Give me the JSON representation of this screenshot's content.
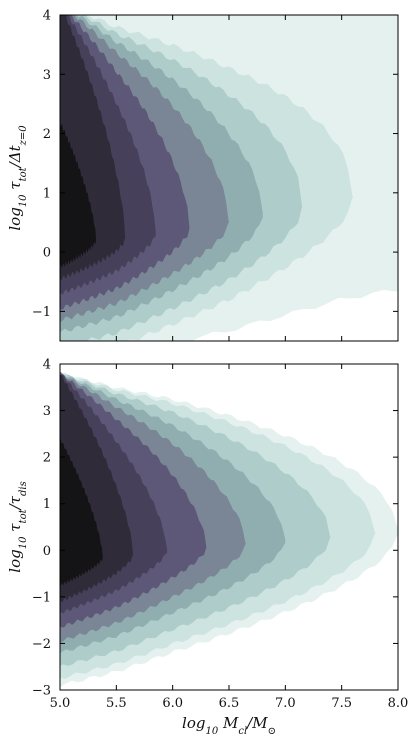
{
  "chart_data": [
    {
      "type": "contour",
      "panel": "top",
      "xlim": [
        5.0,
        8.0
      ],
      "ylim": [
        -1.5,
        4.0
      ],
      "xticks": [
        5.0,
        5.5,
        6.0,
        6.5,
        7.0,
        7.5,
        8.0
      ],
      "xtick_labels": [
        "",
        "",
        "",
        "",
        "",
        "",
        ""
      ],
      "yticks": [
        -1,
        0,
        1,
        2,
        3,
        4
      ],
      "ytick_labels": [
        "−1",
        "0",
        "1",
        "2",
        "3",
        "4"
      ],
      "ylabel": "log₁₀ τ_tot/Δt_z=0",
      "xlabel": "",
      "levels": 9,
      "colors": [
        "#e5f1ef",
        "#cde3e0",
        "#aecdca",
        "#90aeb0",
        "#7a8595",
        "#5d5877",
        "#47405a",
        "#2f2b38",
        "#141316"
      ],
      "contour_shape": {
        "ridge_y": [
          [
            5.0,
            0.2
          ],
          [
            5.5,
            0.2
          ],
          [
            6.0,
            0.35
          ],
          [
            6.5,
            0.5
          ],
          [
            7.0,
            0.7
          ],
          [
            7.5,
            0.9
          ],
          [
            8.0,
            1.0
          ]
        ],
        "extent_x": [
          8.9,
          2.6,
          2.15,
          1.8,
          1.5,
          1.15,
          0.85,
          0.58,
          0.32
        ],
        "half_upper": [
          4.0,
          4.0,
          4.0,
          4.0,
          4.0,
          4.0,
          4.0,
          4.0,
          2.0
        ],
        "half_lower": [
          2.0,
          2.0,
          1.8,
          1.55,
          1.35,
          1.15,
          0.9,
          0.65,
          0.45
        ],
        "taper_power": [
          0.5,
          0.5,
          0.52,
          0.55,
          0.58,
          0.6,
          0.62,
          0.64,
          0.66
        ]
      }
    },
    {
      "type": "contour",
      "panel": "bottom",
      "xlim": [
        5.0,
        8.0
      ],
      "ylim": [
        -3.0,
        4.0
      ],
      "xticks": [
        5.0,
        5.5,
        6.0,
        6.5,
        7.0,
        7.5,
        8.0
      ],
      "xtick_labels": [
        "5.0",
        "5.5",
        "6.0",
        "6.5",
        "7.0",
        "7.5",
        "8.0"
      ],
      "yticks": [
        -3,
        -2,
        -1,
        0,
        1,
        2,
        3,
        4
      ],
      "ytick_labels": [
        "−3",
        "−2",
        "−1",
        "0",
        "1",
        "2",
        "3",
        "4"
      ],
      "ylabel": "log₁₀ τ_tot/τ_dis",
      "xlabel": "log₁₀ M_cl/M_⊙",
      "levels": 9,
      "colors": [
        "#e5f1ef",
        "#cde3e0",
        "#aecdca",
        "#90aeb0",
        "#7a8595",
        "#5d5877",
        "#47405a",
        "#2f2b38",
        "#141316"
      ],
      "contour_shape": {
        "ridge_y": [
          [
            5.0,
            -0.2
          ],
          [
            5.5,
            -0.15
          ],
          [
            6.0,
            0.0
          ],
          [
            6.5,
            0.1
          ],
          [
            7.0,
            0.2
          ],
          [
            7.5,
            0.3
          ],
          [
            8.0,
            0.4
          ]
        ],
        "extent_x": [
          3.0,
          2.8,
          2.4,
          2.0,
          1.65,
          1.3,
          0.95,
          0.65,
          0.38
        ],
        "half_upper": [
          4.0,
          4.0,
          4.0,
          4.0,
          4.0,
          4.0,
          4.0,
          4.0,
          2.6
        ],
        "half_lower": [
          2.7,
          2.55,
          2.3,
          2.0,
          1.75,
          1.45,
          1.15,
          0.9,
          0.55
        ],
        "taper_power": [
          0.52,
          0.54,
          0.56,
          0.58,
          0.6,
          0.62,
          0.64,
          0.66,
          0.68
        ]
      }
    }
  ]
}
